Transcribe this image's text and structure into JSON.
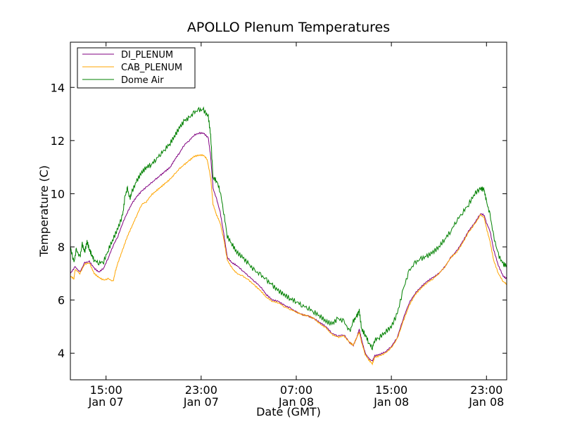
{
  "chart_data": {
    "type": "line",
    "title": "APOLLO Plenum Temperatures",
    "xlabel": "Date (GMT)",
    "ylabel": "Temperature (C)",
    "xlim": [
      12,
      48.7
    ],
    "ylim": [
      3,
      15.7
    ],
    "x_unit": "hours since Jan 07 00:00 GMT",
    "yticks": [
      4,
      6,
      8,
      10,
      12,
      14
    ],
    "xticks": [
      {
        "x": 15,
        "line1": "15:00",
        "line2": "Jan 07"
      },
      {
        "x": 23,
        "line1": "23:00",
        "line2": "Jan 07"
      },
      {
        "x": 31,
        "line1": "07:00",
        "line2": "Jan 08"
      },
      {
        "x": 39,
        "line1": "15:00",
        "line2": "Jan 08"
      },
      {
        "x": 47,
        "line1": "23:00",
        "line2": "Jan 08"
      }
    ],
    "legend_position": "top-left",
    "series": [
      {
        "name": "DI_PLENUM",
        "color": "#800080",
        "points": [
          [
            12.0,
            7.0
          ],
          [
            12.4,
            7.25
          ],
          [
            12.8,
            7.05
          ],
          [
            13.2,
            7.4
          ],
          [
            13.6,
            7.45
          ],
          [
            14.0,
            7.2
          ],
          [
            14.4,
            7.05
          ],
          [
            14.8,
            7.2
          ],
          [
            15.2,
            7.6
          ],
          [
            15.6,
            8.05
          ],
          [
            16.0,
            8.4
          ],
          [
            16.4,
            8.9
          ],
          [
            16.8,
            9.3
          ],
          [
            17.2,
            9.65
          ],
          [
            17.6,
            9.9
          ],
          [
            18.0,
            10.1
          ],
          [
            18.4,
            10.25
          ],
          [
            18.8,
            10.4
          ],
          [
            19.2,
            10.55
          ],
          [
            19.6,
            10.7
          ],
          [
            20.0,
            10.85
          ],
          [
            20.4,
            11.0
          ],
          [
            20.8,
            11.3
          ],
          [
            21.2,
            11.55
          ],
          [
            21.6,
            11.85
          ],
          [
            22.0,
            12.0
          ],
          [
            22.4,
            12.2
          ],
          [
            22.8,
            12.28
          ],
          [
            23.2,
            12.28
          ],
          [
            23.6,
            12.1
          ],
          [
            23.8,
            11.4
          ],
          [
            24.0,
            10.2
          ],
          [
            24.3,
            9.8
          ],
          [
            24.6,
            9.3
          ],
          [
            24.9,
            8.5
          ],
          [
            25.2,
            7.6
          ],
          [
            25.6,
            7.4
          ],
          [
            26.0,
            7.3
          ],
          [
            26.5,
            7.1
          ],
          [
            27.0,
            6.9
          ],
          [
            27.5,
            6.7
          ],
          [
            28.0,
            6.5
          ],
          [
            28.5,
            6.2
          ],
          [
            29.0,
            6.0
          ],
          [
            29.5,
            5.95
          ],
          [
            30.0,
            5.8
          ],
          [
            30.5,
            5.7
          ],
          [
            31.0,
            5.55
          ],
          [
            31.5,
            5.45
          ],
          [
            32.0,
            5.4
          ],
          [
            32.5,
            5.3
          ],
          [
            33.0,
            5.15
          ],
          [
            33.5,
            5.0
          ],
          [
            34.0,
            4.75
          ],
          [
            34.5,
            4.65
          ],
          [
            35.0,
            4.7
          ],
          [
            35.5,
            4.4
          ],
          [
            35.8,
            4.3
          ],
          [
            36.1,
            4.6
          ],
          [
            36.3,
            4.9
          ],
          [
            36.5,
            4.5
          ],
          [
            36.8,
            4.0
          ],
          [
            37.1,
            3.8
          ],
          [
            37.4,
            3.7
          ],
          [
            37.6,
            3.9
          ],
          [
            38.0,
            3.95
          ],
          [
            38.5,
            4.05
          ],
          [
            39.0,
            4.25
          ],
          [
            39.5,
            4.6
          ],
          [
            40.0,
            5.3
          ],
          [
            40.5,
            5.9
          ],
          [
            41.0,
            6.25
          ],
          [
            41.5,
            6.5
          ],
          [
            42.0,
            6.7
          ],
          [
            42.5,
            6.85
          ],
          [
            43.0,
            7.0
          ],
          [
            43.5,
            7.25
          ],
          [
            44.0,
            7.6
          ],
          [
            44.5,
            7.85
          ],
          [
            45.0,
            8.2
          ],
          [
            45.5,
            8.6
          ],
          [
            46.0,
            8.9
          ],
          [
            46.5,
            9.25
          ],
          [
            46.8,
            9.2
          ],
          [
            47.0,
            8.9
          ],
          [
            47.3,
            8.6
          ],
          [
            47.6,
            7.9
          ],
          [
            48.0,
            7.3
          ],
          [
            48.4,
            6.9
          ],
          [
            48.7,
            6.8
          ]
        ]
      },
      {
        "name": "CAB_PLENUM",
        "color": "#ffa500",
        "points": [
          [
            12.0,
            6.9
          ],
          [
            12.3,
            6.8
          ],
          [
            12.4,
            7.15
          ],
          [
            12.8,
            7.0
          ],
          [
            13.2,
            7.35
          ],
          [
            13.6,
            7.4
          ],
          [
            14.0,
            7.0
          ],
          [
            14.4,
            6.85
          ],
          [
            14.8,
            6.75
          ],
          [
            15.2,
            6.8
          ],
          [
            15.6,
            6.7
          ],
          [
            15.8,
            7.1
          ],
          [
            16.0,
            7.4
          ],
          [
            16.4,
            7.9
          ],
          [
            16.8,
            8.4
          ],
          [
            17.2,
            8.8
          ],
          [
            17.6,
            9.2
          ],
          [
            18.0,
            9.6
          ],
          [
            18.4,
            9.7
          ],
          [
            18.8,
            9.95
          ],
          [
            19.2,
            10.1
          ],
          [
            19.6,
            10.25
          ],
          [
            20.0,
            10.4
          ],
          [
            20.4,
            10.55
          ],
          [
            20.8,
            10.75
          ],
          [
            21.2,
            10.95
          ],
          [
            21.6,
            11.1
          ],
          [
            22.0,
            11.25
          ],
          [
            22.4,
            11.4
          ],
          [
            22.8,
            11.45
          ],
          [
            23.2,
            11.45
          ],
          [
            23.5,
            11.3
          ],
          [
            23.8,
            10.6
          ],
          [
            24.0,
            9.6
          ],
          [
            24.3,
            9.2
          ],
          [
            24.6,
            8.9
          ],
          [
            24.9,
            8.3
          ],
          [
            25.2,
            7.5
          ],
          [
            25.6,
            7.2
          ],
          [
            26.0,
            7.0
          ],
          [
            26.5,
            6.9
          ],
          [
            27.0,
            6.75
          ],
          [
            27.5,
            6.55
          ],
          [
            28.0,
            6.35
          ],
          [
            28.5,
            6.1
          ],
          [
            29.0,
            5.95
          ],
          [
            29.5,
            5.9
          ],
          [
            30.0,
            5.75
          ],
          [
            30.5,
            5.65
          ],
          [
            31.0,
            5.55
          ],
          [
            31.5,
            5.45
          ],
          [
            32.0,
            5.4
          ],
          [
            32.5,
            5.3
          ],
          [
            33.0,
            5.1
          ],
          [
            33.5,
            4.95
          ],
          [
            34.0,
            4.7
          ],
          [
            34.5,
            4.6
          ],
          [
            35.0,
            4.65
          ],
          [
            35.5,
            4.4
          ],
          [
            35.8,
            4.3
          ],
          [
            36.1,
            4.6
          ],
          [
            36.3,
            4.8
          ],
          [
            36.5,
            4.4
          ],
          [
            36.8,
            3.95
          ],
          [
            37.1,
            3.75
          ],
          [
            37.4,
            3.6
          ],
          [
            37.6,
            3.85
          ],
          [
            38.0,
            3.9
          ],
          [
            38.5,
            4.0
          ],
          [
            39.0,
            4.2
          ],
          [
            39.5,
            4.55
          ],
          [
            40.0,
            5.2
          ],
          [
            40.5,
            5.8
          ],
          [
            41.0,
            6.2
          ],
          [
            41.5,
            6.45
          ],
          [
            42.0,
            6.65
          ],
          [
            42.5,
            6.8
          ],
          [
            43.0,
            7.0
          ],
          [
            43.5,
            7.25
          ],
          [
            44.0,
            7.6
          ],
          [
            44.5,
            7.8
          ],
          [
            45.0,
            8.15
          ],
          [
            45.5,
            8.55
          ],
          [
            46.0,
            8.85
          ],
          [
            46.5,
            9.2
          ],
          [
            46.8,
            9.1
          ],
          [
            47.0,
            8.7
          ],
          [
            47.3,
            8.2
          ],
          [
            47.6,
            7.5
          ],
          [
            48.0,
            7.0
          ],
          [
            48.4,
            6.7
          ],
          [
            48.7,
            6.6
          ]
        ]
      },
      {
        "name": "Dome Air",
        "color": "#008000",
        "points": [
          [
            12.0,
            8.0
          ],
          [
            12.3,
            7.4
          ],
          [
            12.5,
            7.9
          ],
          [
            12.8,
            7.6
          ],
          [
            13.0,
            8.1
          ],
          [
            13.2,
            7.8
          ],
          [
            13.4,
            8.2
          ],
          [
            13.6,
            7.9
          ],
          [
            13.8,
            7.7
          ],
          [
            14.0,
            7.5
          ],
          [
            14.4,
            7.4
          ],
          [
            14.8,
            7.45
          ],
          [
            15.2,
            7.9
          ],
          [
            15.6,
            8.3
          ],
          [
            16.0,
            8.7
          ],
          [
            16.4,
            9.2
          ],
          [
            16.6,
            9.9
          ],
          [
            16.8,
            10.2
          ],
          [
            17.0,
            9.8
          ],
          [
            17.2,
            10.1
          ],
          [
            17.6,
            10.5
          ],
          [
            18.0,
            10.8
          ],
          [
            18.4,
            11.0
          ],
          [
            18.8,
            11.1
          ],
          [
            19.2,
            11.3
          ],
          [
            19.6,
            11.5
          ],
          [
            20.0,
            11.7
          ],
          [
            20.4,
            11.9
          ],
          [
            20.8,
            12.2
          ],
          [
            21.2,
            12.5
          ],
          [
            21.6,
            12.75
          ],
          [
            22.0,
            12.85
          ],
          [
            22.4,
            13.05
          ],
          [
            22.8,
            13.15
          ],
          [
            23.2,
            13.15
          ],
          [
            23.6,
            12.9
          ],
          [
            23.8,
            12.2
          ],
          [
            24.0,
            10.6
          ],
          [
            24.3,
            10.5
          ],
          [
            24.6,
            10.1
          ],
          [
            24.9,
            9.3
          ],
          [
            25.2,
            8.4
          ],
          [
            25.6,
            8.1
          ],
          [
            26.0,
            7.8
          ],
          [
            26.5,
            7.6
          ],
          [
            27.0,
            7.35
          ],
          [
            27.5,
            7.1
          ],
          [
            28.0,
            6.95
          ],
          [
            28.5,
            6.75
          ],
          [
            29.0,
            6.55
          ],
          [
            29.5,
            6.35
          ],
          [
            30.0,
            6.2
          ],
          [
            30.5,
            6.05
          ],
          [
            31.0,
            5.95
          ],
          [
            31.5,
            5.8
          ],
          [
            32.0,
            5.7
          ],
          [
            32.5,
            5.55
          ],
          [
            33.0,
            5.4
          ],
          [
            33.5,
            5.2
          ],
          [
            34.0,
            5.1
          ],
          [
            34.5,
            5.3
          ],
          [
            35.0,
            5.2
          ],
          [
            35.5,
            4.8
          ],
          [
            35.8,
            5.2
          ],
          [
            36.1,
            5.4
          ],
          [
            36.3,
            5.6
          ],
          [
            36.5,
            4.9
          ],
          [
            36.8,
            4.7
          ],
          [
            37.1,
            4.4
          ],
          [
            37.4,
            4.2
          ],
          [
            37.6,
            4.5
          ],
          [
            38.0,
            4.6
          ],
          [
            38.5,
            4.8
          ],
          [
            39.0,
            5.0
          ],
          [
            39.5,
            5.5
          ],
          [
            40.0,
            6.4
          ],
          [
            40.5,
            7.1
          ],
          [
            41.0,
            7.4
          ],
          [
            41.5,
            7.55
          ],
          [
            42.0,
            7.65
          ],
          [
            42.5,
            7.8
          ],
          [
            43.0,
            8.0
          ],
          [
            43.5,
            8.3
          ],
          [
            44.0,
            8.6
          ],
          [
            44.5,
            9.0
          ],
          [
            45.0,
            9.3
          ],
          [
            45.5,
            9.6
          ],
          [
            46.0,
            10.0
          ],
          [
            46.5,
            10.2
          ],
          [
            46.8,
            10.15
          ],
          [
            47.0,
            9.7
          ],
          [
            47.3,
            9.2
          ],
          [
            47.6,
            8.4
          ],
          [
            48.0,
            7.7
          ],
          [
            48.4,
            7.35
          ],
          [
            48.7,
            7.3
          ]
        ]
      }
    ]
  }
}
